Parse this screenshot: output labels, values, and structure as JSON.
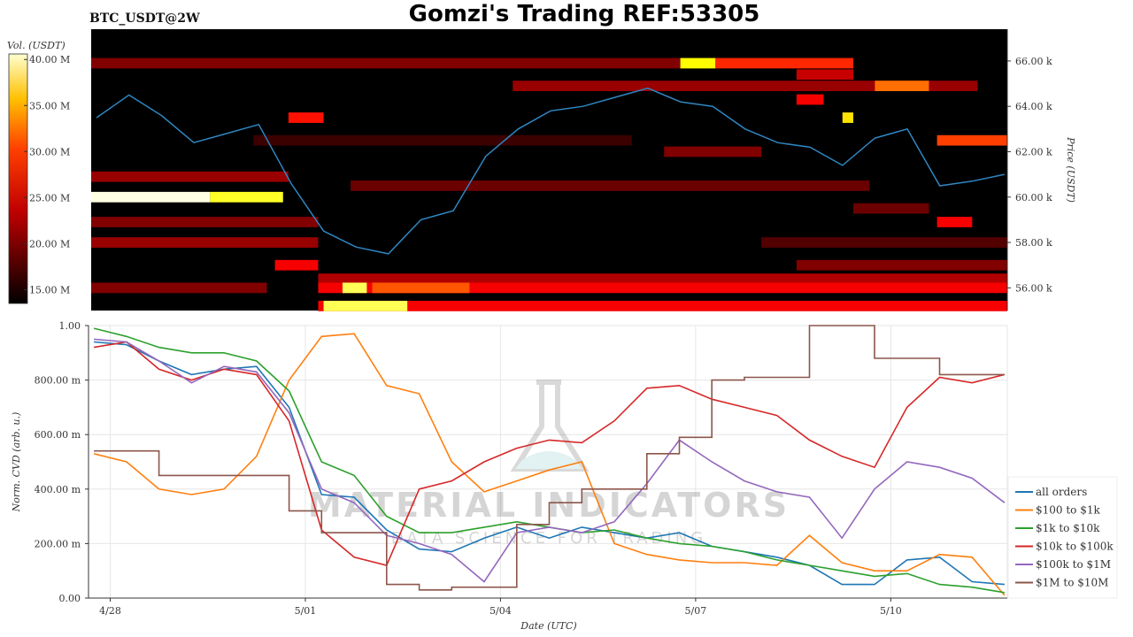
{
  "header": {
    "symbol": "BTC_USDT@2W",
    "title": "Gomzi's Trading REF:53305"
  },
  "watermark": {
    "line1": "MATERIAL INDICATORS",
    "line2": "DATA SCIENCE FOR TRADING"
  },
  "chart_data": [
    {
      "type": "heatmap",
      "name": "orderbook-heatmap",
      "ylabel": "Price (USDT)",
      "colorbar_label": "Vol. (USDT)",
      "colormap": "hot",
      "colorbar_range": [
        13.5,
        40.6
      ],
      "colorbar_ticks": [
        {
          "v": 40,
          "label": "40.00 M"
        },
        {
          "v": 35,
          "label": "35.00 M"
        },
        {
          "v": 30,
          "label": "30.00 M"
        },
        {
          "v": 25,
          "label": "25.00 M"
        },
        {
          "v": 20,
          "label": "20.00 M"
        },
        {
          "v": 15,
          "label": "15.00 M"
        }
      ],
      "xlim": [
        "04-27 16:00",
        "05-11 19:00"
      ],
      "ylim": [
        55.0,
        67.4
      ],
      "y_ticks": [
        {
          "v": 66,
          "label": "66.00 k"
        },
        {
          "v": 64,
          "label": "64.00 k"
        },
        {
          "v": 62,
          "label": "62.00 k"
        },
        {
          "v": 60,
          "label": "60.00 k"
        },
        {
          "v": 58,
          "label": "58.00 k"
        },
        {
          "v": 56,
          "label": "56.00 k"
        }
      ],
      "bands": [
        {
          "price": 65.9,
          "from": "04-27 16:00",
          "to": "05-06 18:00",
          "vol": 19
        },
        {
          "price": 65.9,
          "from": "05-06 18:00",
          "to": "05-07 07:00",
          "vol": 35
        },
        {
          "price": 65.9,
          "from": "05-07 07:00",
          "to": "05-09 10:00",
          "vol": 26
        },
        {
          "price": 65.4,
          "from": "05-08 13:00",
          "to": "05-09 10:00",
          "vol": 22
        },
        {
          "price": 64.9,
          "from": "05-04 04:00",
          "to": "05-11 08:00",
          "vol": 20
        },
        {
          "price": 64.9,
          "from": "05-09 18:00",
          "to": "05-10 14:00",
          "vol": 29
        },
        {
          "price": 64.3,
          "from": "05-08 13:00",
          "to": "05-08 23:00",
          "vol": 24
        },
        {
          "price": 63.5,
          "from": "04-30 17:00",
          "to": "05-01 06:00",
          "vol": 25
        },
        {
          "price": 63.5,
          "from": "05-09 06:00",
          "to": "05-09 10:00",
          "vol": 34
        },
        {
          "price": 62.5,
          "from": "05-10 17:00",
          "to": "05-11 19:00",
          "vol": 27
        },
        {
          "price": 62.5,
          "from": "04-30 04:00",
          "to": "05-06 00:00",
          "vol": 16
        },
        {
          "price": 62.0,
          "from": "05-06 12:00",
          "to": "05-08 00:00",
          "vol": 19
        },
        {
          "price": 60.9,
          "from": "04-27 16:00",
          "to": "04-30 17:00",
          "vol": 20
        },
        {
          "price": 60.5,
          "from": "05-01 16:00",
          "to": "05-09 16:00",
          "vol": 18
        },
        {
          "price": 60.0,
          "from": "04-27 16:00",
          "to": "04-29 12:00",
          "vol": 40
        },
        {
          "price": 60.0,
          "from": "04-29 12:00",
          "to": "04-30 15:00",
          "vol": 36
        },
        {
          "price": 59.5,
          "from": "05-09 10:00",
          "to": "05-10 14:00",
          "vol": 18
        },
        {
          "price": 58.9,
          "from": "04-27 16:00",
          "to": "05-01 04:00",
          "vol": 19
        },
        {
          "price": 58.9,
          "from": "05-10 17:00",
          "to": "05-11 06:00",
          "vol": 24
        },
        {
          "price": 58.0,
          "from": "04-27 16:00",
          "to": "05-01 04:00",
          "vol": 20
        },
        {
          "price": 58.0,
          "from": "05-08 00:00",
          "to": "05-11 19:00",
          "vol": 17
        },
        {
          "price": 57.0,
          "from": "04-30 12:00",
          "to": "05-01 04:00",
          "vol": 24
        },
        {
          "price": 57.0,
          "from": "05-08 13:00",
          "to": "05-11 19:00",
          "vol": 19
        },
        {
          "price": 56.4,
          "from": "05-01 04:00",
          "to": "05-11 19:00",
          "vol": 21
        },
        {
          "price": 56.0,
          "from": "04-27 16:00",
          "to": "04-30 09:00",
          "vol": 19
        },
        {
          "price": 56.0,
          "from": "05-01 04:00",
          "to": "05-11 19:00",
          "vol": 24
        },
        {
          "price": 56.0,
          "from": "05-01 13:00",
          "to": "05-01 22:00",
          "vol": 37
        },
        {
          "price": 56.0,
          "from": "05-02 00:00",
          "to": "05-03 12:00",
          "vol": 28
        },
        {
          "price": 55.2,
          "from": "05-01 04:00",
          "to": "05-11 19:00",
          "vol": 24
        },
        {
          "price": 55.2,
          "from": "05-01 06:00",
          "to": "05-02 13:00",
          "vol": 37
        }
      ],
      "price_series": {
        "color": "#2e86c1",
        "x": [
          "04-27 18:00",
          "04-28 06:00",
          "04-28 18:00",
          "04-29 06:00",
          "04-29 18:00",
          "04-30 06:00",
          "04-30 18:00",
          "05-01 06:00",
          "05-01 18:00",
          "05-02 06:00",
          "05-02 18:00",
          "05-03 06:00",
          "05-03 18:00",
          "05-04 06:00",
          "05-04 18:00",
          "05-05 06:00",
          "05-05 18:00",
          "05-06 06:00",
          "05-06 18:00",
          "05-07 06:00",
          "05-07 18:00",
          "05-08 06:00",
          "05-08 18:00",
          "05-09 06:00",
          "05-09 18:00",
          "05-10 06:00",
          "05-10 18:00",
          "05-11 06:00",
          "05-11 18:00"
        ],
        "y": [
          63.5,
          64.5,
          63.6,
          62.4,
          62.8,
          63.2,
          60.6,
          58.5,
          57.8,
          57.5,
          59.0,
          59.4,
          61.8,
          63.0,
          63.8,
          64.0,
          64.4,
          64.8,
          64.2,
          64.0,
          63.0,
          62.4,
          62.2,
          61.4,
          62.6,
          63.0,
          60.5,
          60.7,
          61.0
        ]
      }
    },
    {
      "type": "line",
      "name": "cvd-chart",
      "xlabel": "Date (UTC)",
      "ylabel": "Norm. CVD (arb. u.)",
      "xlim": [
        "04-27 16:00",
        "05-11 19:00"
      ],
      "ylim": [
        0,
        1
      ],
      "grid": true,
      "legend": "bottom-right",
      "x_ticks": [
        {
          "v": "04-28 00:00",
          "label": "4/28"
        },
        {
          "v": "05-01 00:00",
          "label": "5/01"
        },
        {
          "v": "05-04 00:00",
          "label": "5/04"
        },
        {
          "v": "05-07 00:00",
          "label": "5/07"
        },
        {
          "v": "05-10 00:00",
          "label": "5/10"
        }
      ],
      "y_ticks": [
        {
          "v": 1,
          "label": "1.00"
        },
        {
          "v": 0.8,
          "label": "800.00 m"
        },
        {
          "v": 0.6,
          "label": "600.00 m"
        },
        {
          "v": 0.4,
          "label": "400.00 m"
        },
        {
          "v": 0.2,
          "label": "200.00 m"
        },
        {
          "v": 0,
          "label": "0.00"
        }
      ],
      "x": [
        "04-27 18:00",
        "04-28 06:00",
        "04-28 18:00",
        "04-29 06:00",
        "04-29 18:00",
        "04-30 06:00",
        "04-30 18:00",
        "05-01 06:00",
        "05-01 18:00",
        "05-02 06:00",
        "05-02 18:00",
        "05-03 06:00",
        "05-03 18:00",
        "05-04 06:00",
        "05-04 18:00",
        "05-05 06:00",
        "05-05 18:00",
        "05-06 06:00",
        "05-06 18:00",
        "05-07 06:00",
        "05-07 18:00",
        "05-08 06:00",
        "05-08 18:00",
        "05-09 06:00",
        "05-09 18:00",
        "05-10 06:00",
        "05-10 18:00",
        "05-11 06:00",
        "05-11 18:00"
      ],
      "series": [
        {
          "name": "all orders",
          "color": "#1f77b4",
          "step": false,
          "values": [
            0.94,
            0.93,
            0.87,
            0.82,
            0.84,
            0.85,
            0.7,
            0.38,
            0.37,
            0.25,
            0.18,
            0.17,
            0.22,
            0.26,
            0.22,
            0.26,
            0.24,
            0.22,
            0.24,
            0.19,
            0.17,
            0.15,
            0.12,
            0.05,
            0.05,
            0.14,
            0.15,
            0.06,
            0.05
          ]
        },
        {
          "name": "$100 to $1k",
          "color": "#ff7f0e",
          "step": false,
          "values": [
            0.53,
            0.5,
            0.4,
            0.38,
            0.4,
            0.52,
            0.8,
            0.96,
            0.97,
            0.78,
            0.75,
            0.5,
            0.39,
            0.43,
            0.47,
            0.5,
            0.2,
            0.16,
            0.14,
            0.13,
            0.13,
            0.12,
            0.23,
            0.13,
            0.1,
            0.1,
            0.16,
            0.15,
            0.01
          ]
        },
        {
          "name": "$1k to $10k",
          "color": "#2ca02c",
          "step": false,
          "values": [
            0.99,
            0.96,
            0.92,
            0.9,
            0.9,
            0.87,
            0.76,
            0.5,
            0.45,
            0.3,
            0.24,
            0.24,
            0.26,
            0.28,
            0.26,
            0.24,
            0.25,
            0.22,
            0.2,
            0.19,
            0.17,
            0.14,
            0.12,
            0.1,
            0.08,
            0.09,
            0.05,
            0.04,
            0.02
          ]
        },
        {
          "name": "$10k to $100k",
          "color": "#d62728",
          "step": false,
          "values": [
            0.92,
            0.94,
            0.84,
            0.8,
            0.84,
            0.82,
            0.65,
            0.25,
            0.15,
            0.12,
            0.4,
            0.43,
            0.5,
            0.55,
            0.58,
            0.57,
            0.65,
            0.77,
            0.78,
            0.73,
            0.7,
            0.67,
            0.58,
            0.52,
            0.48,
            0.7,
            0.81,
            0.79,
            0.82
          ]
        },
        {
          "name": "$100k to $1M",
          "color": "#9467bd",
          "step": false,
          "values": [
            0.95,
            0.94,
            0.87,
            0.79,
            0.85,
            0.83,
            0.68,
            0.4,
            0.35,
            0.23,
            0.2,
            0.16,
            0.06,
            0.24,
            0.26,
            0.24,
            0.28,
            0.42,
            0.58,
            0.5,
            0.43,
            0.39,
            0.37,
            0.22,
            0.4,
            0.5,
            0.48,
            0.44,
            0.35
          ]
        },
        {
          "name": "$1M to $10M",
          "color": "#8c564b",
          "step": true,
          "values": [
            0.54,
            0.54,
            0.45,
            0.45,
            0.45,
            0.45,
            0.32,
            0.24,
            0.24,
            0.05,
            0.03,
            0.04,
            0.04,
            0.27,
            0.35,
            0.4,
            0.4,
            0.53,
            0.59,
            0.8,
            0.81,
            0.81,
            1.0,
            1.0,
            0.88,
            0.88,
            0.82,
            0.82,
            0.82
          ]
        }
      ]
    }
  ]
}
